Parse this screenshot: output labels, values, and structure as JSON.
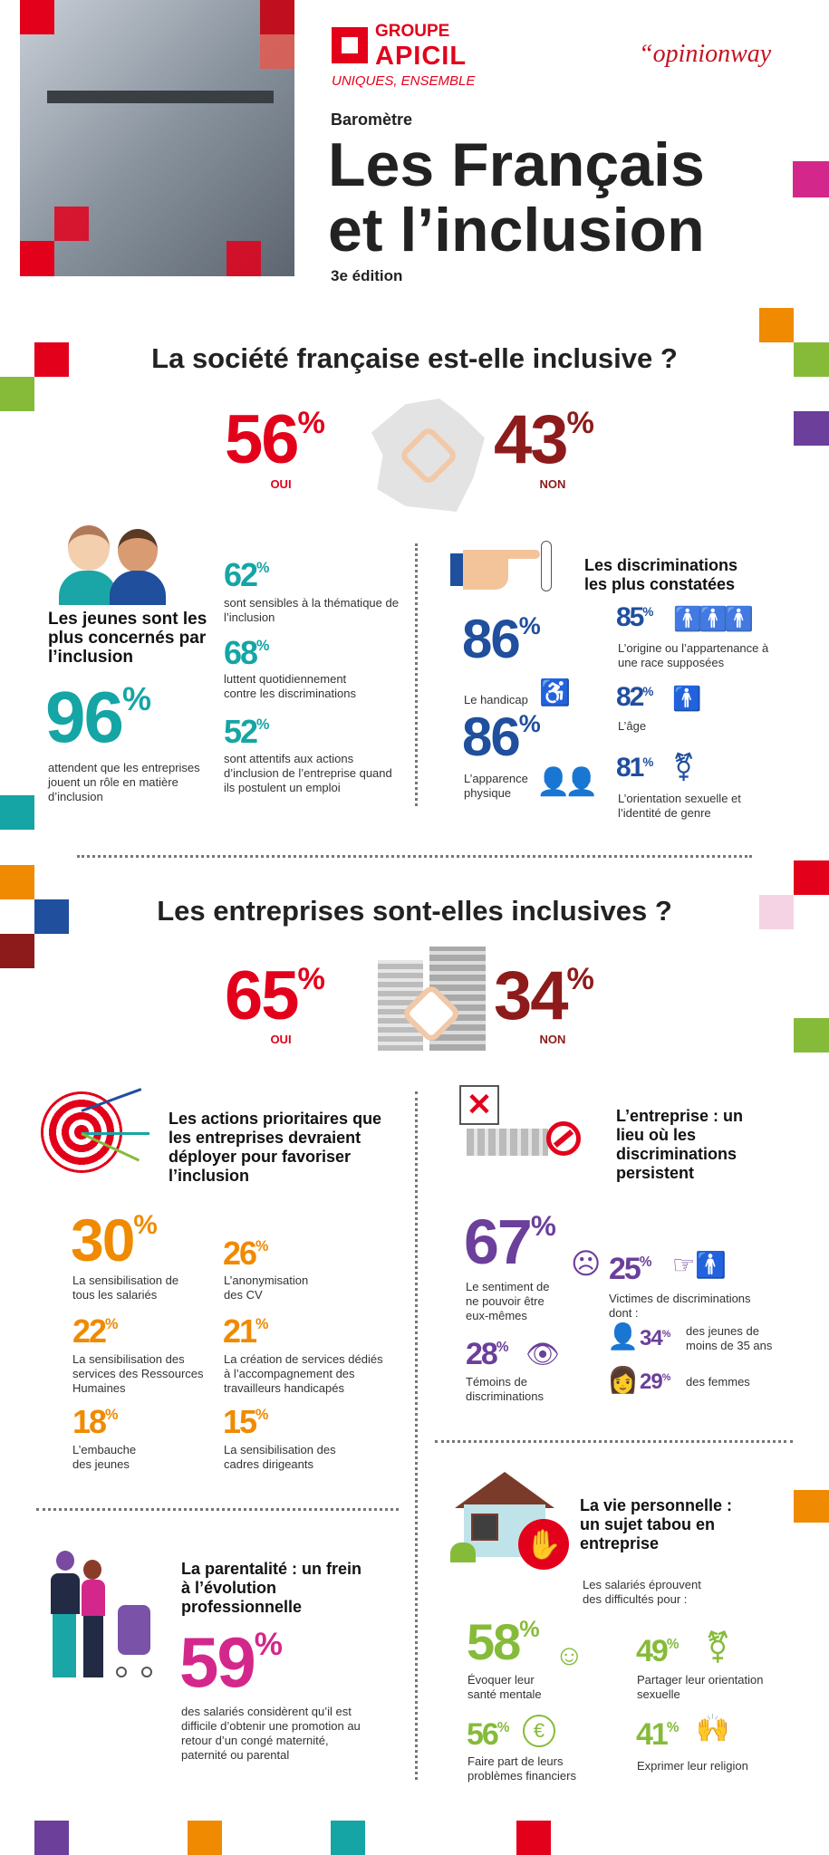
{
  "colors": {
    "red": "#e3001b",
    "dark_red": "#8e1b1b",
    "teal": "#15a5a5",
    "blue": "#1f4f9d",
    "orange": "#f08a00",
    "purple": "#6b3f9a",
    "magenta": "#d4278b",
    "green": "#86bb3a"
  },
  "header": {
    "brand_group": "GROUPE",
    "brand_name": "APICIL",
    "brand_tagline": "UNIQUES, ENSEMBLE",
    "partner": "“opinionway",
    "kicker": "Baromètre",
    "title_line1": "Les Français",
    "title_line2": "et l’inclusion",
    "edition": "3e édition"
  },
  "society": {
    "title": "La société française est-elle inclusive ?",
    "yes_value": "56",
    "yes_label": "OUI",
    "no_value": "43",
    "no_label": "NON",
    "icon": "france-map-hands-icon"
  },
  "youth": {
    "title": "Les jeunes sont les plus concernés par l’inclusion",
    "main_value": "96",
    "main_caption": "attendent que les entreprises jouent un rôle en matière d’inclusion",
    "stats": [
      {
        "value": "62",
        "caption": "sont sensibles à la thématique de l’inclusion"
      },
      {
        "value": "68",
        "caption": "luttent quotidiennement contre les discriminations"
      },
      {
        "value": "52",
        "caption": "sont attentifs aux actions d’inclusion de l’entreprise quand ils postulent un emploi"
      }
    ]
  },
  "discriminations": {
    "title": "Les discriminations les plus constatées",
    "items": [
      {
        "value": "86",
        "caption": "Le handicap",
        "icon": "wheelchair-icon"
      },
      {
        "value": "86",
        "caption": "L’apparence physique",
        "icon": "people-icon"
      },
      {
        "value": "85",
        "caption": "L’origine ou l’appartenance à une race supposées",
        "icon": "group-icon"
      },
      {
        "value": "82",
        "caption": "L’âge",
        "icon": "elderly-icon"
      },
      {
        "value": "81",
        "caption": "L’orientation sexuelle et l’identité de genre",
        "icon": "gender-icon"
      }
    ]
  },
  "companies": {
    "title": "Les entreprises sont-elles inclusives ?",
    "yes_value": "65",
    "yes_label": "OUI",
    "no_value": "34",
    "no_label": "NON",
    "icon": "buildings-hands-icon"
  },
  "actions": {
    "title": "Les actions prioritaires que les entreprises devraient déployer pour favoriser l’inclusion",
    "items": [
      {
        "value": "30",
        "caption": "La sensibilisation de tous les salariés"
      },
      {
        "value": "26",
        "caption": "L’anonymisation des CV"
      },
      {
        "value": "22",
        "caption": "La sensibilisation des services des Ressources Humaines"
      },
      {
        "value": "21",
        "caption": "La création de services dédiés à l’accompagnement des travailleurs handicapés"
      },
      {
        "value": "18",
        "caption": "L’embauche des jeunes"
      },
      {
        "value": "15",
        "caption": "La sensibilisation des cadres dirigeants"
      }
    ]
  },
  "workplace": {
    "title": "L’entreprise : un lieu où les discriminations persistent",
    "feeling": {
      "value": "67",
      "caption": "Le sentiment de ne pouvoir être eux-mêmes"
    },
    "witnesses": {
      "value": "28",
      "caption": "Témoins de discriminations"
    },
    "victims": {
      "value": "25",
      "caption": "Victimes de discriminations dont :",
      "sub": [
        {
          "value": "34",
          "caption": "des jeunes de moins de 35 ans"
        },
        {
          "value": "29",
          "caption": "des femmes"
        }
      ]
    }
  },
  "parenting": {
    "title": "La parentalité : un frein à l’évolution professionnelle",
    "value": "59",
    "caption": "des salariés considèrent qu’il est difficile d’obtenir une promotion au retour d’un congé maternité, paternité ou parental"
  },
  "personal": {
    "title": "La vie personnelle : un sujet tabou en entreprise",
    "intro": "Les salariés éprouvent des difficultés pour :",
    "items": [
      {
        "value": "58",
        "caption": "Évoquer leur santé mentale"
      },
      {
        "value": "49",
        "caption": "Partager leur orientation sexuelle"
      },
      {
        "value": "56",
        "caption": "Faire part de leurs problèmes financiers"
      },
      {
        "value": "41",
        "caption": "Exprimer leur religion"
      }
    ]
  },
  "pct": "%"
}
